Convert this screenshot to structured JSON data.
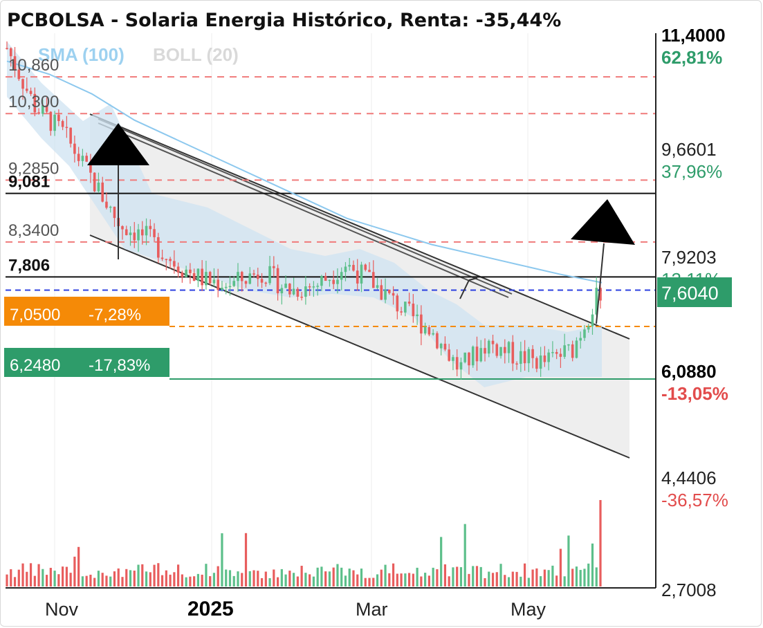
{
  "title": "PCBOLSA - Solaria Energia Histórico, Renta: -35,44%",
  "legend": {
    "sma": "SMA (100)",
    "boll": "BOLL (20)"
  },
  "levels": [
    {
      "label": "10,860",
      "value": 10.86,
      "style": "red-dashed"
    },
    {
      "label": "10,300",
      "value": 10.3,
      "style": "red-dashed"
    },
    {
      "label": "9,2850",
      "value": 9.285,
      "style": "red-dashed"
    },
    {
      "label": "9,081",
      "value": 9.081,
      "style": "black-solid"
    },
    {
      "label": "8,3400",
      "value": 8.34,
      "style": "red-dashed"
    },
    {
      "label": "7,806",
      "value": 7.806,
      "style": "black-solid"
    }
  ],
  "tags": {
    "orange": {
      "price": "7,0500",
      "pct": "-7,28%",
      "value": 7.05
    },
    "green": {
      "price": "6,2480",
      "pct": "-17,83%",
      "value": 6.248
    }
  },
  "current": {
    "label": "7,6040",
    "value": 7.604
  },
  "right_axis": [
    {
      "price": "11,4000",
      "pct": "62,81%",
      "bold": true,
      "sign": "pos"
    },
    {
      "price": "9,6601",
      "pct": "37,96%",
      "bold": false,
      "sign": "pos"
    },
    {
      "price": "7,9203",
      "pct": "13,11%",
      "bold": false,
      "sign": "pos"
    },
    {
      "price": "6,0880",
      "pct": "-13,05%",
      "bold": true,
      "sign": "neg"
    },
    {
      "price": "4,4406",
      "pct": "-36,57%",
      "bold": false,
      "sign": "neg"
    },
    {
      "price": "2,7008",
      "pct": "",
      "bold": false,
      "sign": "neg"
    }
  ],
  "months": [
    {
      "label": "Nov",
      "bold": false
    },
    {
      "label": "2025",
      "bold": true
    },
    {
      "label": "Mar",
      "bold": false
    },
    {
      "label": "May",
      "bold": false
    }
  ],
  "colors": {
    "up": "#5cbf8a",
    "down": "#e85d5d",
    "sma": "#8cc8ee",
    "orange": "#f58a07",
    "green": "#2e9c6a",
    "current": "#2e9c6a",
    "dashed_red": "#f07a7a"
  },
  "chart_data": {
    "type": "candlestick",
    "title": "PCBOLSA - Solaria Energia Histórico, Renta: -35,44%",
    "ylim": [
      2.7008,
      11.4
    ],
    "y_scale": "linear",
    "series": [
      {
        "name": "SMA (100)",
        "values": [
          11.1,
          10.9,
          10.6,
          10.2,
          9.9,
          9.6,
          9.3,
          9.0,
          8.7,
          8.5,
          8.3,
          8.15,
          8.0,
          7.85,
          7.72
        ]
      },
      {
        "name": "BOLL (20)",
        "values": []
      }
    ],
    "close_path": [
      11.3,
      10.4,
      10.0,
      9.3,
      8.6,
      8.4,
      8.0,
      7.75,
      7.7,
      7.9,
      7.6,
      7.7,
      8.0,
      7.7,
      7.3,
      7.0,
      6.4,
      6.8,
      6.6,
      6.5,
      6.7,
      7.6
    ],
    "volume_scale_note": ""
  }
}
